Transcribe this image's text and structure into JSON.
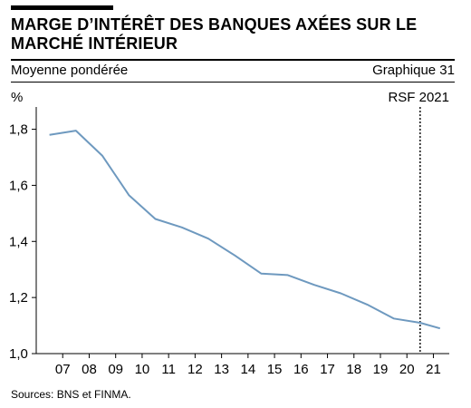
{
  "header": {
    "title": "MARGE D’INTÉRÊT DES BANQUES AXÉES SUR LE MARCHÉ INTÉRIEUR",
    "subtitle": "Moyenne pondérée",
    "chart_number": "Graphique 31"
  },
  "footer": {
    "source": "Sources: BNS et FINMA."
  },
  "colors": {
    "line": "#6e99bf",
    "axis": "#000000",
    "grid": "#cccccc"
  },
  "chart_data": {
    "type": "line",
    "title": "MARGE D’INTÉRÊT DES BANQUES AXÉES SUR LE MARCHÉ INTÉRIEUR",
    "subtitle": "Moyenne pondérée",
    "ylabel": "%",
    "ylim": [
      1.0,
      1.86
    ],
    "yticks": [
      1.0,
      1.2,
      1.4,
      1.6,
      1.8
    ],
    "ytick_labels": [
      "1,0",
      "1,2",
      "1,4",
      "1,6",
      "1,8"
    ],
    "x_labels": [
      "07",
      "08",
      "09",
      "10",
      "11",
      "12",
      "13",
      "14",
      "15",
      "16",
      "17",
      "18",
      "19",
      "20",
      "21"
    ],
    "grid": false,
    "marker": {
      "label": "RSF 2021",
      "position": "2020.5",
      "style": "dotted"
    },
    "series": [
      {
        "x": [
          2006.5,
          2007.5,
          2008.5,
          2009.5,
          2010.5,
          2011.5,
          2012.5,
          2013.5,
          2014.5,
          2015.5,
          2016.5,
          2017.5,
          2018.5,
          2019.5,
          2020.5,
          2021.25
        ],
        "y": [
          1.78,
          1.795,
          1.705,
          1.565,
          1.48,
          1.45,
          1.41,
          1.35,
          1.285,
          1.28,
          1.245,
          1.215,
          1.175,
          1.125,
          1.11,
          1.09
        ]
      }
    ]
  }
}
